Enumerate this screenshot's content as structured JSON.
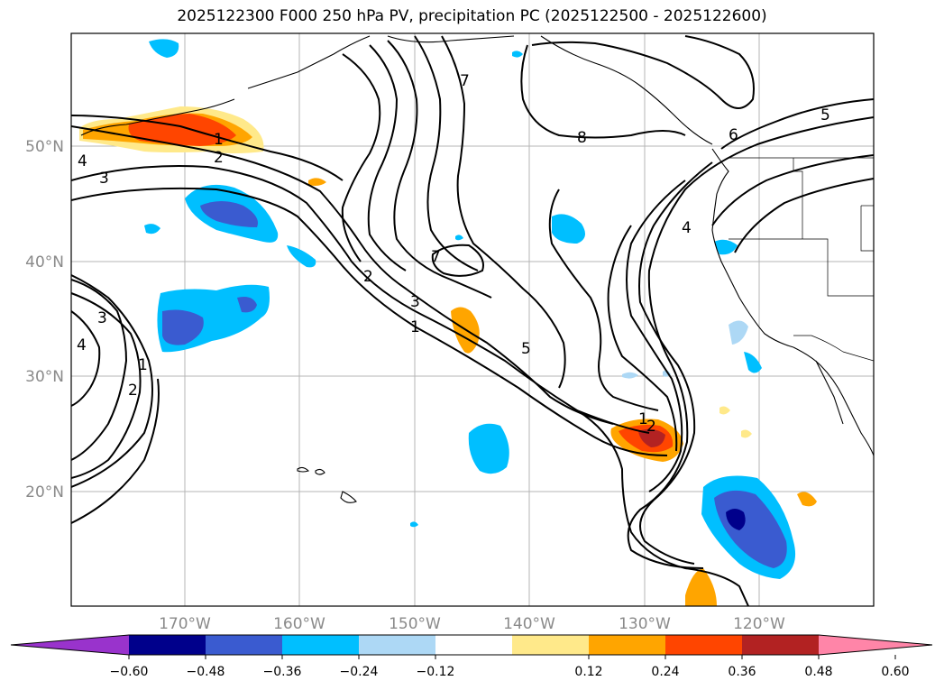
{
  "title": "2025122300 F000 250 hPa PV, precipitation PC (2025122500 - 2025122600)",
  "lat_labels": [
    "50°N",
    "40°N",
    "30°N",
    "20°N"
  ],
  "lon_labels": [
    "170°W",
    "160°W",
    "150°W",
    "140°W",
    "130°W",
    "120°W"
  ],
  "pv_contour_labels": [
    "1",
    "2",
    "3",
    "4",
    "1",
    "2",
    "3",
    "4",
    "1",
    "2",
    "3",
    "7",
    "7",
    "8",
    "6",
    "5",
    "4",
    "2",
    "1",
    "5"
  ],
  "colorbar": {
    "tick_labels": [
      "−0.60",
      "−0.48",
      "−0.36",
      "−0.24",
      "−0.12",
      "0.12",
      "0.24",
      "0.36",
      "0.48",
      "0.60"
    ],
    "colors": [
      "#9933cc",
      "#00008b",
      "#3a5bd0",
      "#00bfff",
      "#add8f5",
      "#ffffff",
      "#ffe98a",
      "#ffa500",
      "#ff4500",
      "#b22222",
      "#ff85a8"
    ]
  }
}
